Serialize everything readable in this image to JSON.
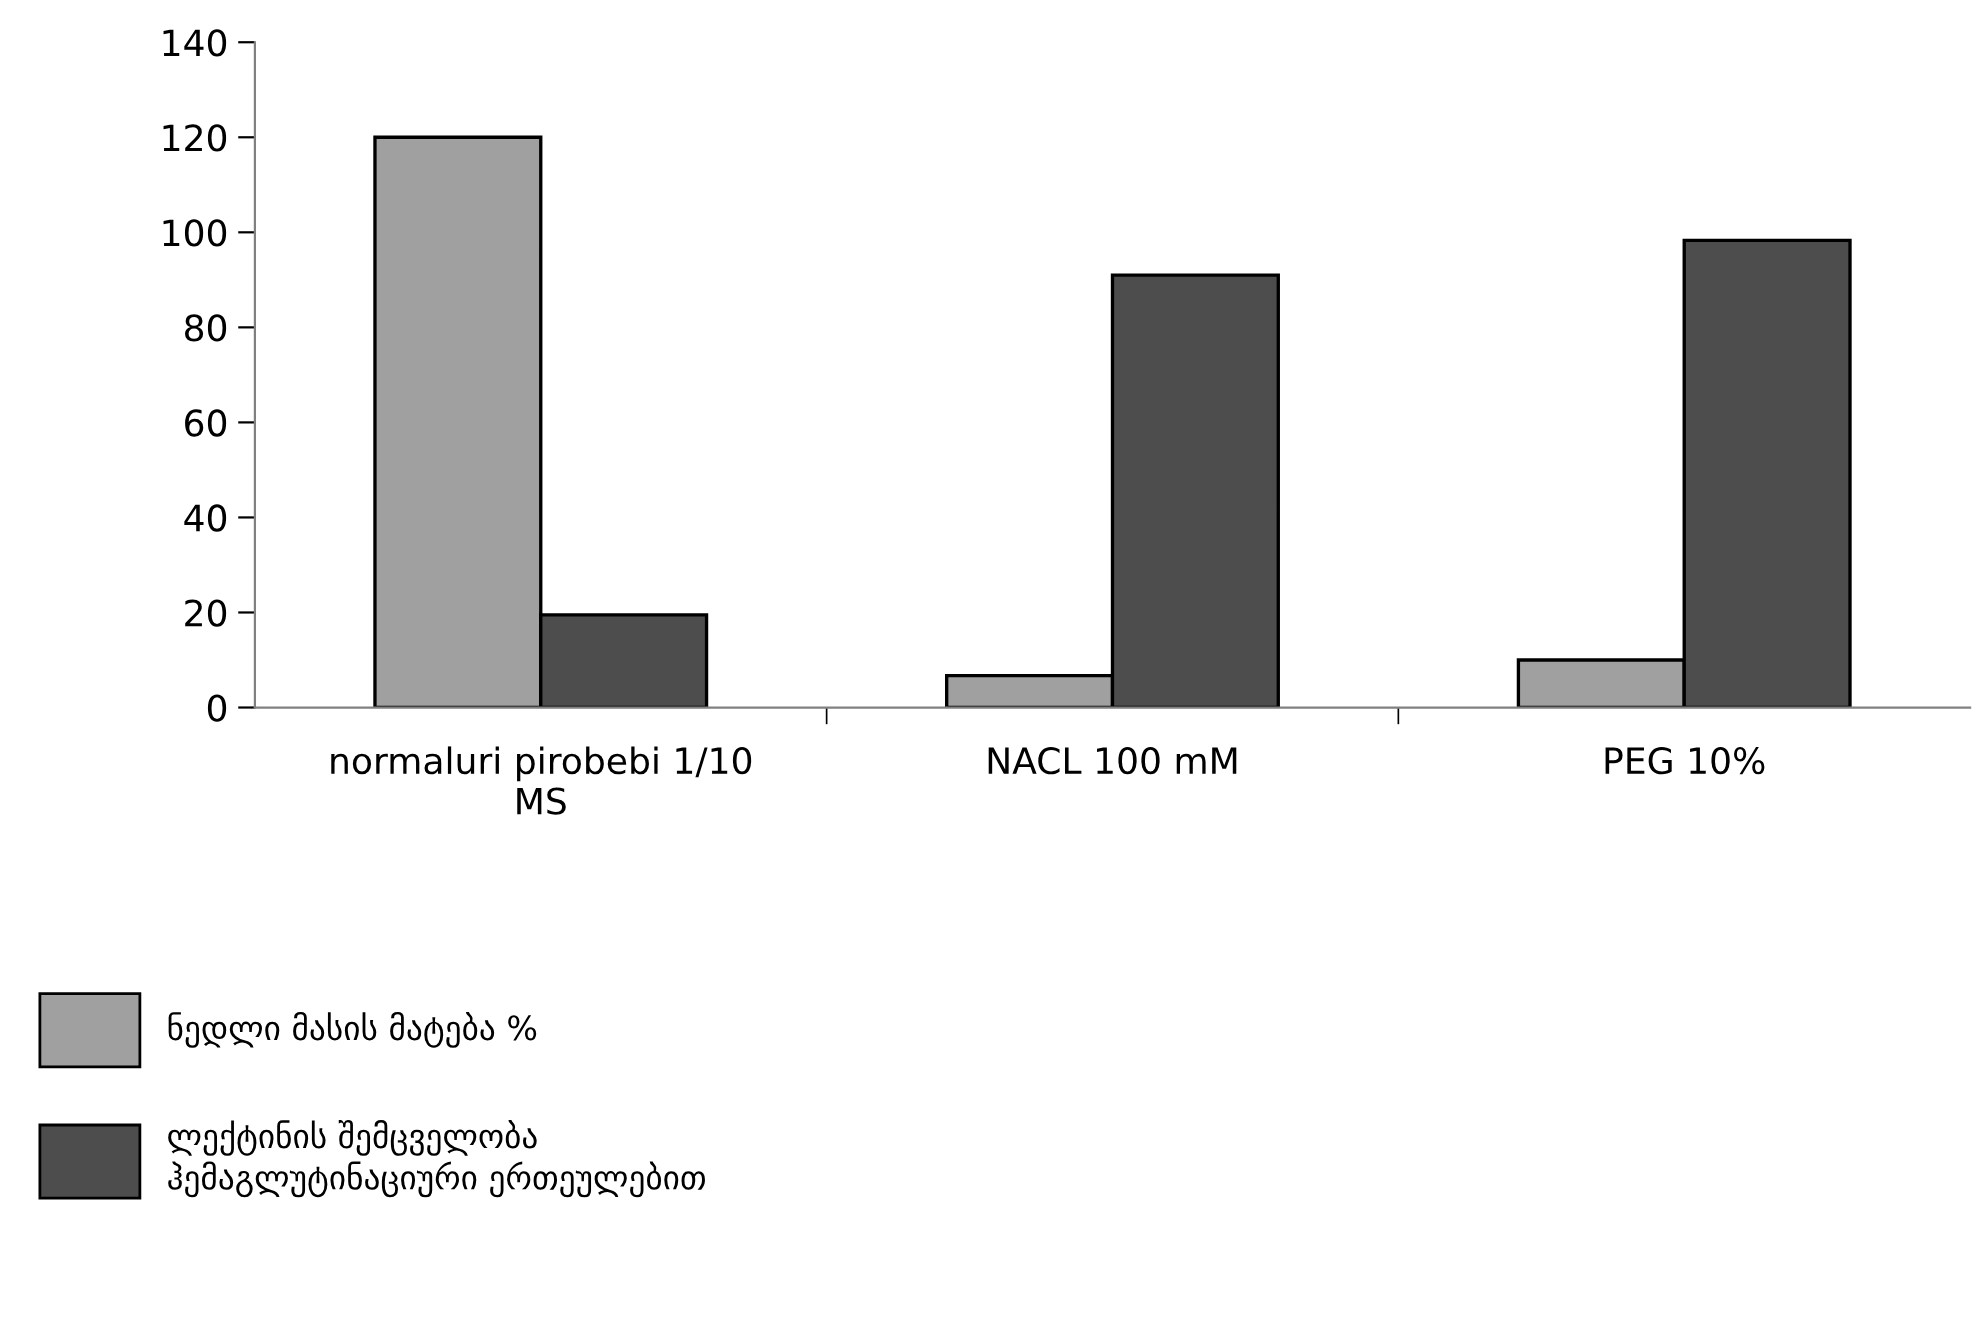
{
  "chart_data": {
    "type": "bar",
    "categories": [
      "normaluri pirobebi 1/10\nMS",
      "NACL 100 mM",
      "PEG 10%"
    ],
    "series": [
      {
        "name": "ნედლი მასის მატება %",
        "color": "#a0a0a0",
        "values": [
          120,
          6.7,
          10
        ]
      },
      {
        "name": "ლექტინის შემცველობა\nჰემაგლუტინაციური ერთეულებით",
        "color": "#4d4d4d",
        "values": [
          19.5,
          91,
          98.3
        ]
      }
    ],
    "ylim": [
      0,
      140
    ],
    "yticks": [
      0,
      20,
      40,
      60,
      80,
      100,
      120,
      140
    ],
    "grid": false,
    "legend": "bottom left"
  }
}
